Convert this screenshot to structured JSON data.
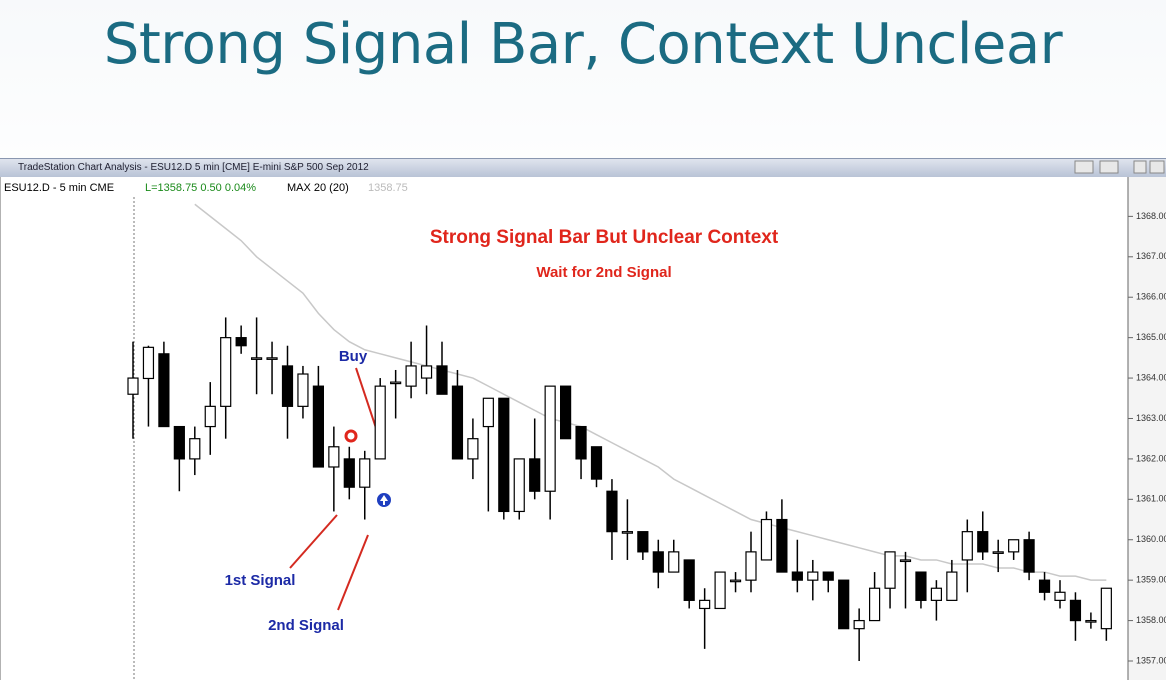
{
  "slide_title": "Strong Signal Bar, Context Unclear",
  "window_title": "TradeStation Chart Analysis - ESU12.D 5 min [CME] E-mini S&P 500 Sep 2012",
  "info_bar": {
    "symbol": "ESU12.D - 5 min  CME",
    "last": "L=1358.75  0.50  0.04%",
    "study": "MAX 20 (20)",
    "study_value": "1358.75"
  },
  "chart_data": {
    "type": "candlestick",
    "title": "Strong Signal Bar But Unclear Context",
    "subtitle": "Wait for 2nd Signal",
    "annotations": [
      "Buy",
      "1st Signal",
      "2nd Signal"
    ],
    "ylim": [
      1356.53,
      1368.9
    ],
    "yticks": [
      {
        "value": 1357,
        "label": "1357.00"
      },
      {
        "value": 1358,
        "label": "1358.00"
      },
      {
        "value": 1359,
        "label": "1359.00"
      },
      {
        "value": 1360,
        "label": "1360.00"
      },
      {
        "value": 1361,
        "label": "1361.00"
      },
      {
        "value": 1362,
        "label": "1362.00"
      },
      {
        "value": 1363,
        "label": "1363.00"
      },
      {
        "value": 1364,
        "label": "1364.00"
      },
      {
        "value": 1365,
        "label": "1365.00"
      },
      {
        "value": 1366,
        "label": "1366.00"
      },
      {
        "value": 1367,
        "label": "1367.00"
      },
      {
        "value": 1368,
        "label": "1368.00"
      }
    ],
    "up_color": "#ffffff",
    "down_color": "#000000",
    "ma_color": "#c8c8c8",
    "open": [
      1363.6,
      1363.99,
      1364.6,
      1362.8,
      1362.0,
      1362.8,
      1363.3,
      1365.0,
      1364.5,
      1364.5,
      1364.3,
      1363.3,
      1363.8,
      1361.8,
      1362.0,
      1361.3,
      1362.0,
      1363.9,
      1363.8,
      1364.0,
      1364.3,
      1363.8,
      1362.0,
      1362.8,
      1363.5,
      1360.7,
      1362.0,
      1361.2,
      1363.8,
      1362.8,
      1362.3,
      1361.2,
      1360.2,
      1360.2,
      1359.7,
      1359.2,
      1359.5,
      1358.3,
      1358.3,
      1359.0,
      1359.0,
      1359.5,
      1360.5,
      1359.2,
      1359.0,
      1359.2,
      1359.0,
      1357.8,
      1358.0,
      1358.8,
      1359.5,
      1359.2,
      1358.5,
      1358.5,
      1359.5,
      1360.2,
      1359.7,
      1359.7,
      1360.0,
      1359.0,
      1358.5,
      1358.5,
      1358.0,
      1357.8
    ],
    "high": [
      1364.9,
      1364.8,
      1364.9,
      1362.8,
      1362.8,
      1363.9,
      1365.5,
      1365.3,
      1365.5,
      1364.9,
      1364.8,
      1364.3,
      1364.3,
      1362.8,
      1362.3,
      1362.2,
      1364.0,
      1364.2,
      1364.9,
      1365.3,
      1364.9,
      1364.2,
      1363.0,
      1363.5,
      1363.5,
      1362.0,
      1363.0,
      1363.8,
      1363.8,
      1362.8,
      1362.3,
      1361.5,
      1361.0,
      1360.2,
      1360.0,
      1360.0,
      1359.5,
      1358.8,
      1359.2,
      1359.2,
      1360.2,
      1360.7,
      1361.0,
      1360.0,
      1359.5,
      1359.2,
      1359.0,
      1358.3,
      1359.2,
      1359.7,
      1359.7,
      1359.2,
      1359.0,
      1359.5,
      1360.5,
      1360.7,
      1360.0,
      1360.0,
      1360.2,
      1359.2,
      1359.0,
      1358.7,
      1358.2,
      1358.8
    ],
    "low": [
      1362.5,
      1362.8,
      1362.8,
      1361.2,
      1361.6,
      1362.1,
      1362.5,
      1364.6,
      1363.6,
      1363.6,
      1362.5,
      1363.0,
      1361.8,
      1360.7,
      1361.0,
      1360.5,
      1362.0,
      1363.0,
      1363.5,
      1363.6,
      1363.6,
      1362.0,
      1361.5,
      1360.7,
      1360.5,
      1360.5,
      1361.0,
      1360.5,
      1362.5,
      1361.5,
      1361.3,
      1359.5,
      1359.5,
      1359.5,
      1358.8,
      1359.2,
      1358.3,
      1357.3,
      1358.3,
      1358.7,
      1358.7,
      1359.5,
      1359.2,
      1358.7,
      1358.5,
      1358.7,
      1357.8,
      1357.0,
      1358.0,
      1358.3,
      1358.3,
      1358.3,
      1358.0,
      1358.5,
      1358.7,
      1359.5,
      1359.2,
      1359.5,
      1359.0,
      1358.5,
      1358.3,
      1357.5,
      1357.8,
      1357.5
    ],
    "close": [
      1364.0,
      1364.76,
      1362.8,
      1362.0,
      1362.5,
      1363.3,
      1365.0,
      1364.8,
      1364.5,
      1364.5,
      1363.3,
      1364.1,
      1361.8,
      1362.3,
      1361.3,
      1362.0,
      1363.8,
      1363.9,
      1364.3,
      1364.3,
      1363.6,
      1362.0,
      1362.5,
      1363.5,
      1360.7,
      1362.0,
      1361.2,
      1363.8,
      1362.5,
      1362.0,
      1361.5,
      1360.2,
      1360.2,
      1359.7,
      1359.2,
      1359.7,
      1358.5,
      1358.5,
      1359.2,
      1359.0,
      1359.7,
      1360.5,
      1359.2,
      1359.0,
      1359.2,
      1359.0,
      1357.8,
      1358.0,
      1358.8,
      1359.7,
      1359.5,
      1358.5,
      1358.8,
      1359.2,
      1360.2,
      1359.7,
      1359.7,
      1360.0,
      1359.2,
      1358.7,
      1358.7,
      1358.0,
      1358.0,
      1358.8
    ],
    "ma": [
      null,
      null,
      null,
      null,
      1368.3,
      1368.0,
      1367.7,
      1367.4,
      1367.0,
      1366.7,
      1366.4,
      1366.1,
      1365.6,
      1365.2,
      1364.9,
      1364.7,
      1364.6,
      1364.5,
      1364.4,
      1364.3,
      1364.2,
      1364.1,
      1364.0,
      1363.8,
      1363.6,
      1363.4,
      1363.2,
      1363.0,
      1362.9,
      1362.8,
      1362.6,
      1362.4,
      1362.2,
      1362.0,
      1361.8,
      1361.5,
      1361.3,
      1361.1,
      1360.9,
      1360.7,
      1360.5,
      1360.4,
      1360.3,
      1360.2,
      1360.1,
      1360.0,
      1359.9,
      1359.8,
      1359.7,
      1359.6,
      1359.6,
      1359.5,
      1359.5,
      1359.4,
      1359.4,
      1359.4,
      1359.3,
      1359.3,
      1359.2,
      1359.2,
      1359.1,
      1359.1,
      1359.0,
      1359.0
    ]
  }
}
